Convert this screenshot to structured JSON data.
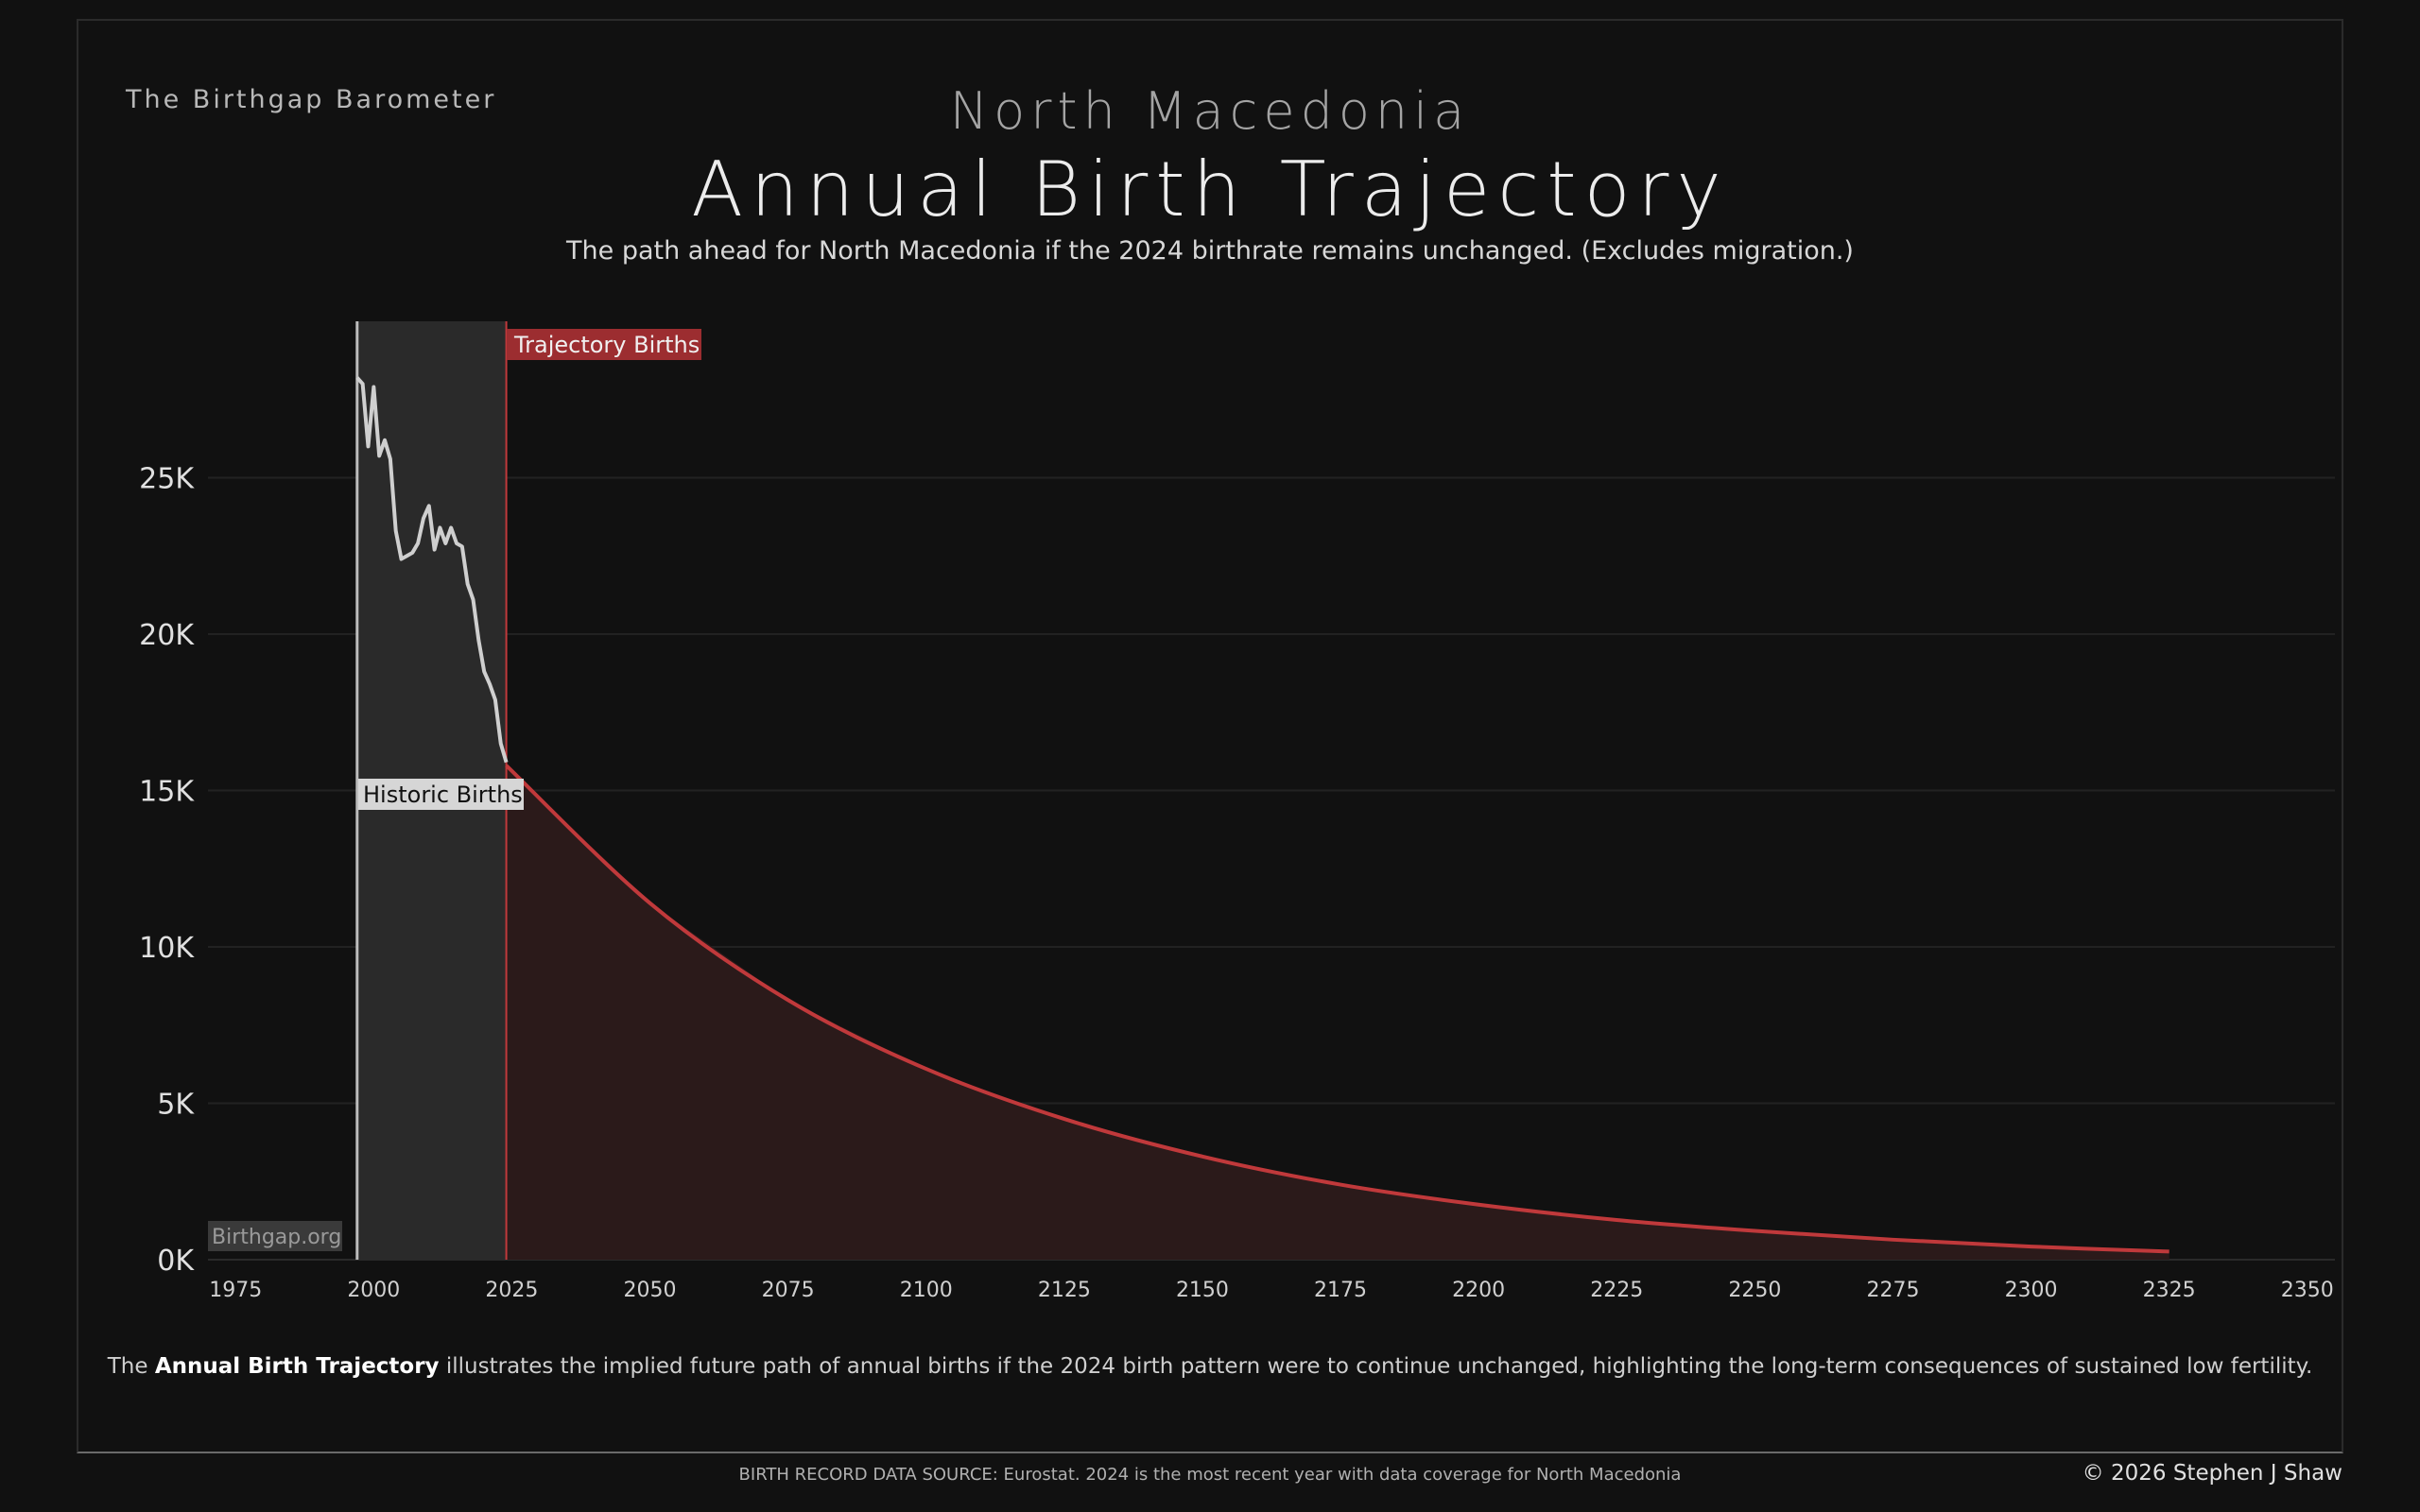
{
  "header": {
    "brand": "The Birthgap Barometer",
    "country": "North Macedonia",
    "title": "Annual Birth Trajectory",
    "subtitle": "The path ahead for North Macedonia if the 2024 birthrate remains unchanged.  (Excludes migration.)"
  },
  "labels": {
    "trajectory": "Trajectory Births",
    "historic": "Historic Births",
    "watermark": "Birthgap.org"
  },
  "caption": {
    "pre": "The ",
    "bold": "Annual Birth Trajectory",
    "post": " illustrates the implied future path of annual births if the 2024 birth pattern were to continue unchanged, highlighting the long-term consequences of sustained low fertility."
  },
  "footer": {
    "source": "BIRTH RECORD DATA SOURCE: Eurostat. 2024 is the most recent year with data coverage for North Macedonia",
    "copyright": "© 2026 Stephen J Shaw"
  },
  "colors": {
    "historic_line": "#cfcfcf",
    "historic_fill": "#2a2a2a",
    "trajectory_line": "#c0393b",
    "trajectory_fill": "#2b1a1a",
    "label_red": "#9c2d30"
  },
  "chart_data": {
    "type": "area",
    "x_range": [
      1970,
      2355
    ],
    "y_range": [
      0,
      30000
    ],
    "x_ticks": [
      1975,
      2000,
      2025,
      2050,
      2075,
      2100,
      2125,
      2150,
      2175,
      2200,
      2225,
      2250,
      2275,
      2300,
      2325,
      2350
    ],
    "y_ticks": [
      0,
      5000,
      10000,
      15000,
      20000,
      25000
    ],
    "y_tick_labels": [
      "0K",
      "5K",
      "10K",
      "15K",
      "20K",
      "25K"
    ],
    "grid": true,
    "historic_start": 1997,
    "trajectory_start": 2024,
    "series": [
      {
        "name": "Historic Births",
        "x": [
          1997,
          1998,
          1999,
          2000,
          2001,
          2002,
          2003,
          2004,
          2005,
          2006,
          2007,
          2008,
          2009,
          2010,
          2011,
          2012,
          2013,
          2014,
          2015,
          2016,
          2017,
          2018,
          2019,
          2020,
          2021,
          2022,
          2023,
          2024
        ],
        "y": [
          28200,
          28000,
          26000,
          27900,
          25700,
          26200,
          25600,
          23300,
          22400,
          22500,
          22600,
          22900,
          23700,
          24100,
          22700,
          23400,
          22900,
          23400,
          22900,
          22800,
          21600,
          21100,
          19800,
          18800,
          18400,
          17900,
          16500,
          15900
        ]
      },
      {
        "name": "Trajectory Births",
        "x": [
          2024,
          2050,
          2075,
          2100,
          2125,
          2150,
          2175,
          2200,
          2225,
          2250,
          2275,
          2300,
          2325
        ],
        "y": [
          15800,
          11400,
          8300,
          6100,
          4500,
          3300,
          2400,
          1760,
          1270,
          920,
          640,
          420,
          260
        ]
      }
    ]
  }
}
